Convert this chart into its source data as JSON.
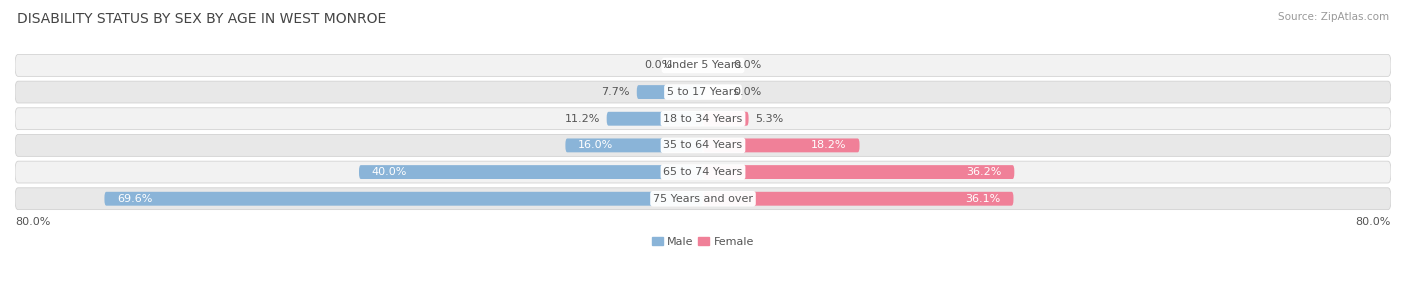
{
  "title": "DISABILITY STATUS BY SEX BY AGE IN WEST MONROE",
  "source": "Source: ZipAtlas.com",
  "categories": [
    "Under 5 Years",
    "5 to 17 Years",
    "18 to 34 Years",
    "35 to 64 Years",
    "65 to 74 Years",
    "75 Years and over"
  ],
  "male_values": [
    0.0,
    7.7,
    11.2,
    16.0,
    40.0,
    69.6
  ],
  "female_values": [
    0.0,
    0.0,
    5.3,
    18.2,
    36.2,
    36.1
  ],
  "male_color": "#8AB4D8",
  "female_color": "#F08098",
  "male_color_light": "#B8D0E8",
  "female_color_light": "#F5B0C0",
  "row_bg_odd": "#F2F2F2",
  "row_bg_even": "#E8E8E8",
  "row_border_color": "#CCCCCC",
  "max_value": 80.0,
  "title_fontsize": 10,
  "label_fontsize": 8,
  "category_fontsize": 8,
  "fig_width": 14.06,
  "fig_height": 3.04,
  "background_color": "#FFFFFF",
  "title_color": "#444444",
  "text_color": "#555555",
  "source_color": "#999999",
  "label_color_outside": "#555555",
  "label_color_inside": "#FFFFFF"
}
